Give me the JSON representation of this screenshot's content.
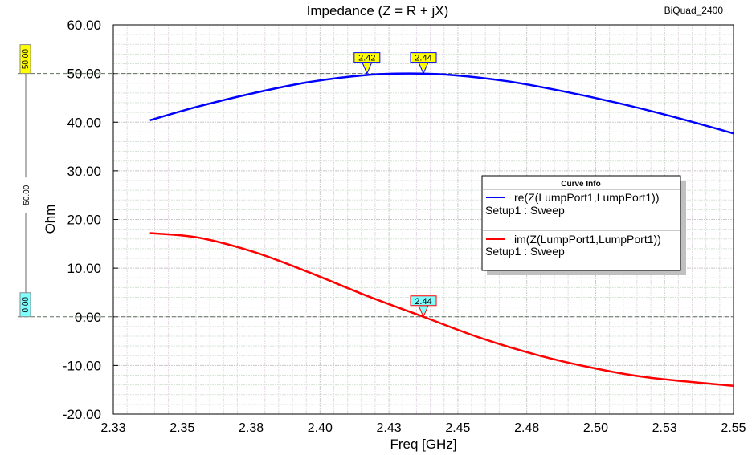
{
  "project_name": "BiQuad_2400",
  "chart_data": {
    "type": "line",
    "title": "Impedance (Z = R + jX)",
    "xlabel": "Freq [GHz]",
    "ylabel": "Ohm",
    "xlim": [
      2.33,
      2.55
    ],
    "ylim": [
      -20,
      60
    ],
    "grid": true,
    "x_tick_labels": [
      "2.33",
      "2.35",
      "2.38",
      "2.40",
      "2.43",
      "2.45",
      "2.48",
      "2.50",
      "2.53",
      "2.55"
    ],
    "y_ticks": [
      60,
      50,
      40,
      30,
      20,
      10,
      0,
      -10,
      -20
    ],
    "y_tick_labels": [
      "60.00",
      "50.00",
      "40.00",
      "30.00",
      "20.00",
      "10.00",
      "0.00",
      "-10.00",
      "-20.00"
    ],
    "legend": {
      "title": "Curve Info",
      "placement": "center-right"
    },
    "series": [
      {
        "name": "re(Z(LumpPort1,LumpPort1))",
        "setup": "Setup1 : Sweep",
        "color": "#0000ff",
        "x": [
          2.343,
          2.36,
          2.38,
          2.4,
          2.42,
          2.435,
          2.45,
          2.47,
          2.49,
          2.51,
          2.53,
          2.55
        ],
        "y": [
          40.4,
          43.2,
          46.0,
          48.3,
          49.7,
          50.0,
          49.7,
          48.4,
          46.3,
          43.8,
          40.9,
          37.7
        ]
      },
      {
        "name": "im(Z(LumpPort1,LumpPort1))",
        "setup": "Setup1 : Sweep",
        "color": "#ff0000",
        "x": [
          2.343,
          2.36,
          2.38,
          2.4,
          2.42,
          2.44,
          2.46,
          2.48,
          2.5,
          2.52,
          2.55
        ],
        "y": [
          17.2,
          16.3,
          13.3,
          9.0,
          4.3,
          0.0,
          -4.3,
          -7.8,
          -10.5,
          -12.5,
          -14.2
        ]
      }
    ],
    "markers": [
      {
        "label": "2.42",
        "x": 2.42,
        "y": 50.0,
        "series": 0,
        "fill": "#ffff00",
        "border": "#0000ff"
      },
      {
        "label": "2.44",
        "x": 2.44,
        "y": 50.0,
        "series": 0,
        "fill": "#ffff00",
        "border": "#0000ff"
      },
      {
        "label": "2.44",
        "x": 2.44,
        "y": 0.0,
        "series": 1,
        "fill": "#80ffff",
        "border": "#ff0000"
      }
    ],
    "ref_lines": [
      {
        "label": "50.00",
        "y": 50,
        "fill": "#ffff00"
      },
      {
        "label": "0.00",
        "y": 0,
        "fill": "#80ffff"
      }
    ],
    "ref_span_label": "50.00"
  }
}
